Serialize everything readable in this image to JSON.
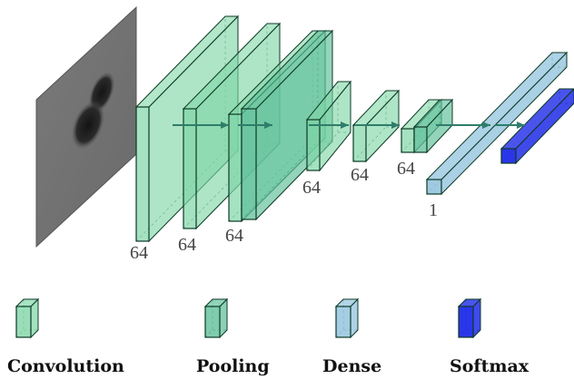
{
  "colors": {
    "convolution": "#7fd6a6",
    "pooling": "#5fbf9a",
    "dense": "#8fc1dc",
    "softmax": "#1f2be8",
    "edge": "#0c3a26",
    "arrow": "#2f7d6a"
  },
  "labels": {
    "conv1": "64",
    "pool1": "64",
    "conv2": "64",
    "conv3": "64",
    "conv4": "64",
    "conv5": "64",
    "dense": "1"
  },
  "legend": [
    {
      "key": "convolution",
      "label": "Convolution"
    },
    {
      "key": "pooling",
      "label": "Pooling"
    },
    {
      "key": "dense",
      "label": "Dense"
    },
    {
      "key": "softmax",
      "label": "Softmax"
    }
  ]
}
